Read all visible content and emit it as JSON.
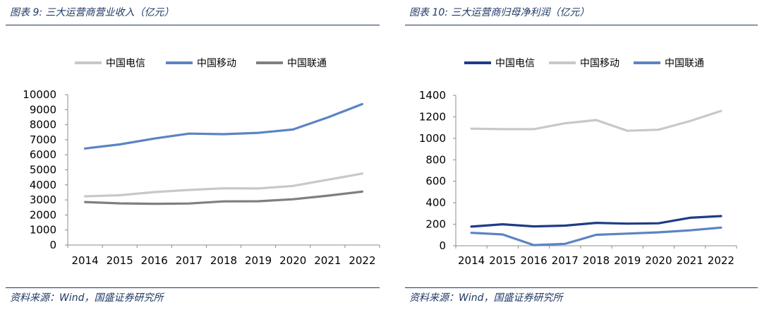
{
  "figures": [
    {
      "title": "图表 9:  三大运营商营业收入（亿元）",
      "source": "资料来源：Wind，国盛证券研究所"
    },
    {
      "title": "图表 10:  三大运营商归母净利润（亿元）",
      "source": "资料来源：Wind，国盛证券研究所"
    }
  ],
  "chart_data": [
    {
      "type": "line",
      "title": "",
      "xlabel": "",
      "ylabel": "",
      "categories": [
        "2014",
        "2015",
        "2016",
        "2017",
        "2018",
        "2019",
        "2020",
        "2021",
        "2022"
      ],
      "ylim": [
        0,
        10000
      ],
      "yticks": [
        0,
        1000,
        2000,
        3000,
        4000,
        5000,
        6000,
        7000,
        8000,
        9000,
        10000
      ],
      "grid": false,
      "legend": "top",
      "series": [
        {
          "name": "中国电信",
          "color": "#c8c8c8",
          "values": [
            3240,
            3310,
            3520,
            3660,
            3770,
            3760,
            3930,
            4340,
            4750
          ]
        },
        {
          "name": "中国移动",
          "color": "#5b84c4",
          "values": [
            6420,
            6690,
            7080,
            7410,
            7370,
            7460,
            7680,
            8480,
            9370
          ]
        },
        {
          "name": "中国联通",
          "color": "#7f7f7f",
          "values": [
            2860,
            2770,
            2740,
            2760,
            2900,
            2910,
            3040,
            3280,
            3550
          ]
        }
      ]
    },
    {
      "type": "line",
      "title": "",
      "xlabel": "",
      "ylabel": "",
      "categories": [
        "2014",
        "2015",
        "2016",
        "2017",
        "2018",
        "2019",
        "2020",
        "2021",
        "2022"
      ],
      "ylim": [
        0,
        1400
      ],
      "yticks": [
        0,
        200,
        400,
        600,
        800,
        1000,
        1200,
        1400
      ],
      "grid": false,
      "legend": "top",
      "series": [
        {
          "name": "中国电信",
          "color": "#1f3c88",
          "values": [
            178,
            200,
            180,
            187,
            213,
            206,
            209,
            260,
            276
          ]
        },
        {
          "name": "中国移动",
          "color": "#c8c8c8",
          "values": [
            1090,
            1085,
            1085,
            1140,
            1170,
            1070,
            1080,
            1160,
            1255
          ]
        },
        {
          "name": "中国联通",
          "color": "#5b84c4",
          "values": [
            120,
            105,
            6,
            18,
            102,
            113,
            125,
            143,
            169
          ]
        }
      ]
    }
  ]
}
